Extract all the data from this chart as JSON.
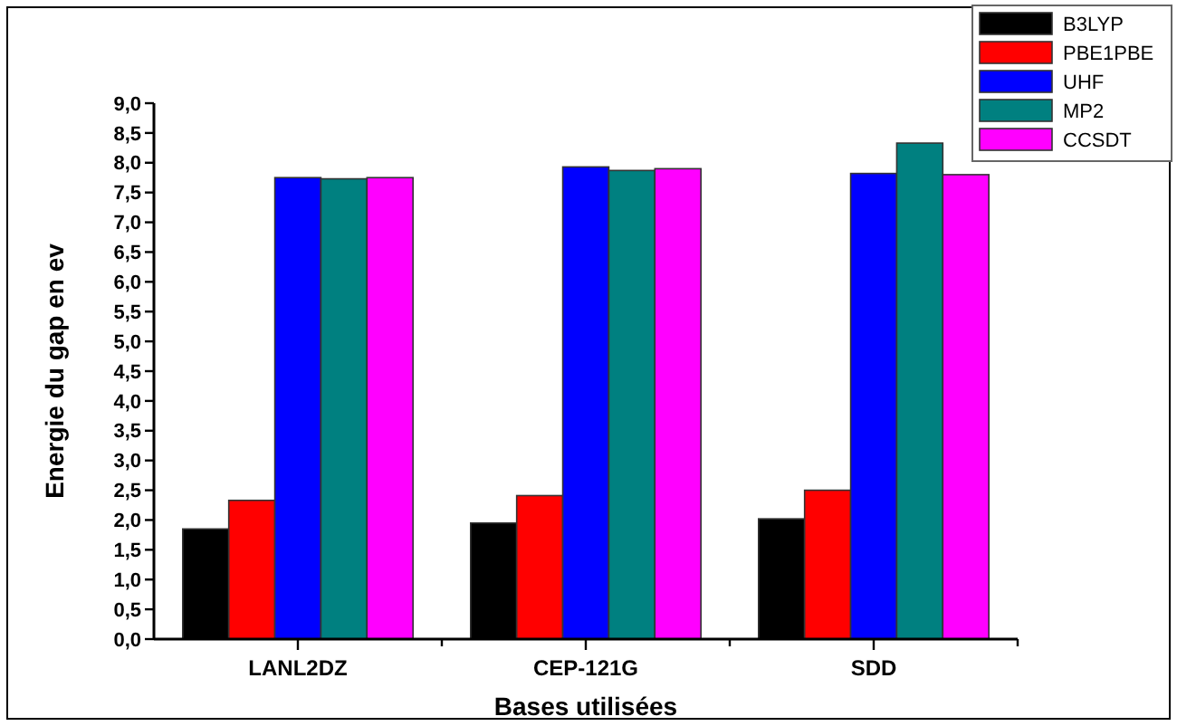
{
  "chart_data": {
    "type": "bar",
    "xlabel": "Bases utilisées",
    "ylabel": "Energie du gap en ev",
    "categories": [
      "LANL2DZ",
      "CEP-121G",
      "SDD"
    ],
    "series": [
      {
        "name": "B3LYP",
        "color": "#000000",
        "values": [
          1.85,
          1.95,
          2.02
        ]
      },
      {
        "name": "PBE1PBE",
        "color": "#ff0000",
        "values": [
          2.33,
          2.41,
          2.5
        ]
      },
      {
        "name": "UHF",
        "color": "#0000ff",
        "values": [
          7.75,
          7.93,
          7.82
        ]
      },
      {
        "name": "MP2",
        "color": "#008080",
        "values": [
          7.73,
          7.87,
          8.33
        ]
      },
      {
        "name": "CCSDT",
        "color": "#ff00ff",
        "values": [
          7.75,
          7.9,
          7.8
        ]
      }
    ],
    "ylim": [
      0,
      9
    ],
    "yticks": [
      {
        "value": 0,
        "label": "0,0"
      },
      {
        "value": 0.5,
        "label": "0,5"
      },
      {
        "value": 1,
        "label": "1,0"
      },
      {
        "value": 1.5,
        "label": "1,5"
      },
      {
        "value": 2,
        "label": "2,0"
      },
      {
        "value": 2.5,
        "label": "2,5"
      },
      {
        "value": 3,
        "label": "3,0"
      },
      {
        "value": 3.5,
        "label": "3,5"
      },
      {
        "value": 4,
        "label": "4,0"
      },
      {
        "value": 4.5,
        "label": "4,5"
      },
      {
        "value": 5,
        "label": "5,0"
      },
      {
        "value": 5.5,
        "label": "5,5"
      },
      {
        "value": 6,
        "label": "6,0"
      },
      {
        "value": 6.5,
        "label": "6,5"
      },
      {
        "value": 7,
        "label": "7,0"
      },
      {
        "value": 7.5,
        "label": "7,5"
      },
      {
        "value": 8,
        "label": "8,0"
      },
      {
        "value": 8.5,
        "label": "8,5"
      },
      {
        "value": 9,
        "label": "9,0"
      }
    ],
    "legend": "top right",
    "grid": false
  }
}
